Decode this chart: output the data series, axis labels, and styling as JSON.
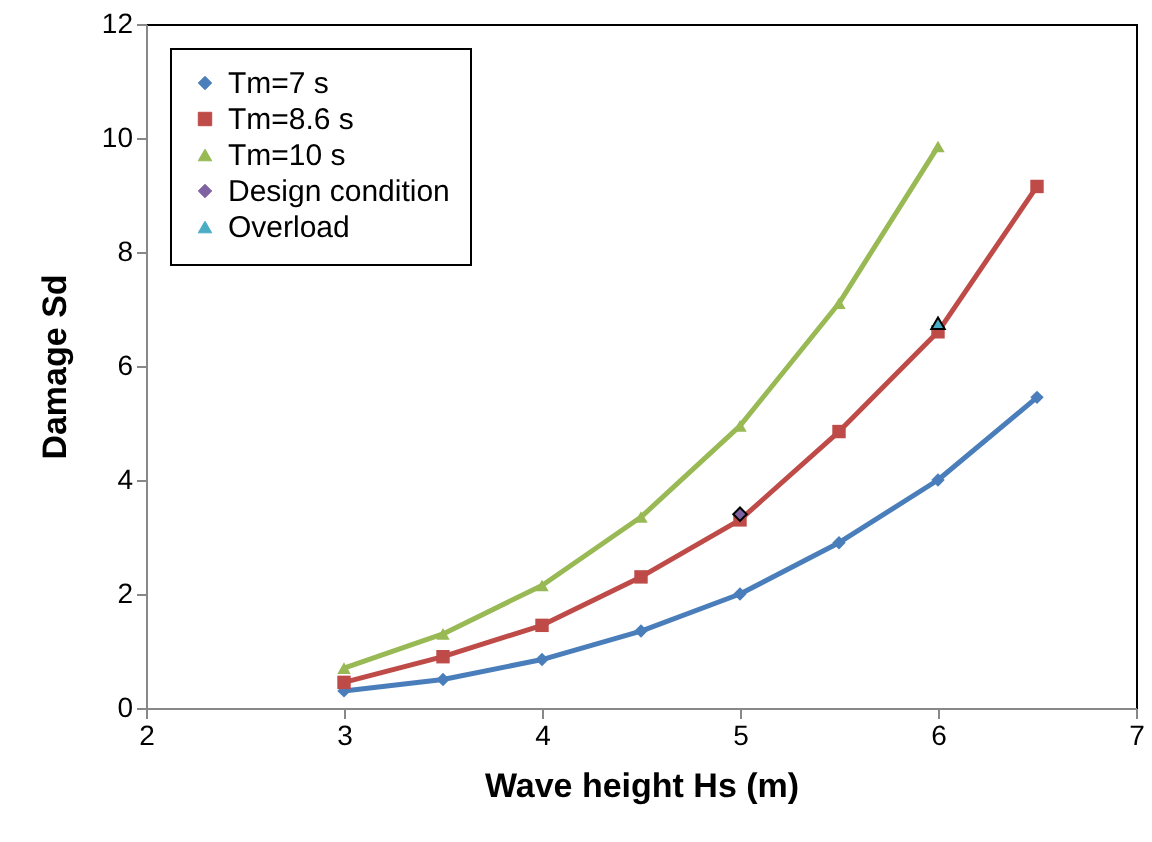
{
  "chart_data": {
    "type": "line",
    "xlabel": "Wave height Hs (m)",
    "ylabel": "Damage Sd",
    "x": [
      3,
      3.5,
      4,
      4.5,
      5,
      5.5,
      6,
      6.5
    ],
    "series": [
      {
        "name": "Tm=7 s",
        "color": "#4a7ebb",
        "marker": "diamond",
        "values": [
          0.3,
          0.5,
          0.85,
          1.35,
          2.0,
          2.9,
          4.0,
          5.45
        ]
      },
      {
        "name": "Tm=8.6 s",
        "color": "#be4b48",
        "marker": "square",
        "values": [
          0.45,
          0.9,
          1.45,
          2.3,
          3.3,
          4.85,
          6.6,
          9.15
        ]
      },
      {
        "name": "Tm=10 s",
        "color": "#98b954",
        "marker": "triangle",
        "values": [
          0.7,
          1.3,
          2.15,
          3.35,
          4.95,
          7.1,
          9.85,
          null
        ]
      },
      {
        "name": "Design condition",
        "type": "scatter",
        "color": "#7e62a1",
        "marker": "diamond",
        "x": [
          5
        ],
        "values": [
          3.4
        ]
      },
      {
        "name": "Overload",
        "type": "scatter",
        "color": "#4bacc6",
        "marker": "triangle",
        "x": [
          6
        ],
        "values": [
          6.75
        ]
      }
    ],
    "xlim": [
      2,
      7
    ],
    "xticks": [
      2,
      3,
      4,
      5,
      6,
      7
    ],
    "ylim": [
      0,
      12
    ],
    "yticks": [
      0,
      2,
      4,
      6,
      8,
      10,
      12
    ],
    "grid": false,
    "legend": "top left"
  }
}
